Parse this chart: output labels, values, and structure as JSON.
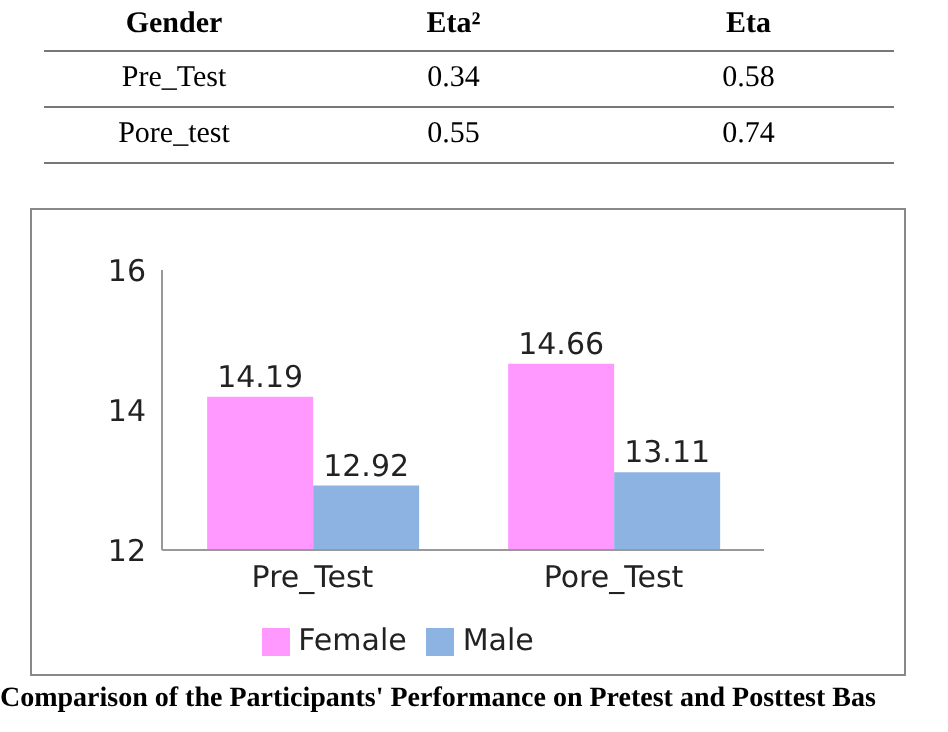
{
  "chart_data": [
    {
      "type": "heatmap",
      "ylabel": "Gender",
      "categories": [
        "Eta²",
        "Eta"
      ],
      "y_categories": [
        "Pre_Test",
        "Pore_test"
      ],
      "cells": [
        [
          0.34,
          0.58
        ],
        [
          0.55,
          0.74
        ]
      ],
      "data_labels": true
    },
    {
      "type": "bar",
      "categories": [
        "Pre_Test",
        "Pore_Test"
      ],
      "series": [
        {
          "name": "Female",
          "color": "#ff99ff",
          "values": [
            14.19,
            14.66
          ]
        },
        {
          "name": "Male",
          "color": "#8db3e2",
          "values": [
            12.92,
            13.11
          ]
        }
      ],
      "ylim": [
        12,
        16
      ],
      "yticks": [
        12,
        14,
        16
      ],
      "data_labels": true,
      "legend": "bottom",
      "annotations": [
        "Comparison of the Participants' Performance on Pretest and Posttest Bas"
      ]
    }
  ]
}
